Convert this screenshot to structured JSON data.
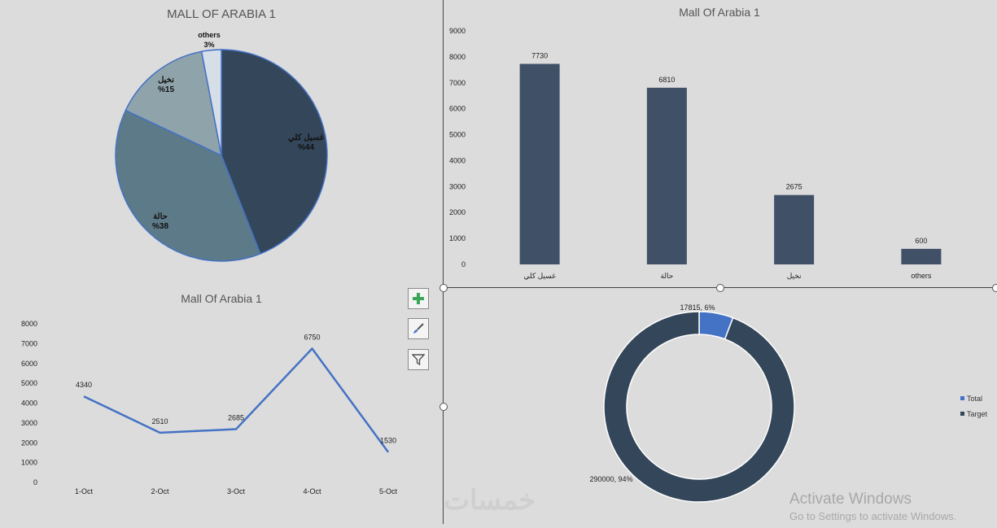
{
  "charts": {
    "pie": {
      "title": "MALL OF ARABIA 1",
      "labels": [
        {
          "name": "غسيل كلي",
          "pct": "%44"
        },
        {
          "name": "حالة",
          "pct": "%38"
        },
        {
          "name": "نخيل",
          "pct": "%15"
        },
        {
          "name": "others",
          "pct": "3%"
        }
      ]
    },
    "bar": {
      "title": "Mall Of Arabia 1"
    },
    "line": {
      "title": "Mall Of Arabia 1"
    },
    "donut": {
      "labels": {
        "total": "17815, 6%",
        "target": "290000, 94%"
      },
      "legend": [
        "Total",
        "Target"
      ]
    }
  },
  "chart_data": [
    {
      "type": "pie",
      "title": "MALL OF ARABIA 1",
      "categories": [
        "غسيل كلي",
        "حالة",
        "نخيل",
        "others"
      ],
      "values": [
        44,
        38,
        15,
        3
      ],
      "colors": [
        "#34465a",
        "#5d7a88",
        "#8fa3ab",
        "#d6dee8"
      ]
    },
    {
      "type": "bar",
      "title": "Mall Of Arabia 1",
      "categories": [
        "غسيل كلي",
        "حالة",
        "نخيل",
        "others"
      ],
      "values": [
        7730,
        6810,
        2675,
        600
      ],
      "ylim": [
        0,
        9000
      ],
      "yticks": [
        0,
        1000,
        2000,
        3000,
        4000,
        5000,
        6000,
        7000,
        8000,
        9000
      ],
      "color": "#405066",
      "grid": false
    },
    {
      "type": "line",
      "title": "Mall Of Arabia 1",
      "categories": [
        "1-Oct",
        "2-Oct",
        "3-Oct",
        "4-Oct",
        "5-Oct"
      ],
      "values": [
        4340,
        2510,
        2685,
        6750,
        1530
      ],
      "ylim": [
        0,
        8000
      ],
      "yticks": [
        0,
        1000,
        2000,
        3000,
        4000,
        5000,
        6000,
        7000,
        8000
      ],
      "color": "#4472c4",
      "grid": false
    },
    {
      "type": "pie",
      "subtype": "donut",
      "categories": [
        "Total",
        "Target"
      ],
      "values": [
        17815,
        290000
      ],
      "percents": [
        6,
        94
      ],
      "colors": [
        "#4472c4",
        "#34465a"
      ],
      "legend": "right"
    }
  ],
  "tools": {
    "add": "chart-elements-icon",
    "style": "chart-styles-icon",
    "filter": "chart-filters-icon"
  },
  "watermark": {
    "line1": "Activate Windows",
    "line2": "Go to Settings to activate Windows.",
    "site": "خمسات"
  }
}
